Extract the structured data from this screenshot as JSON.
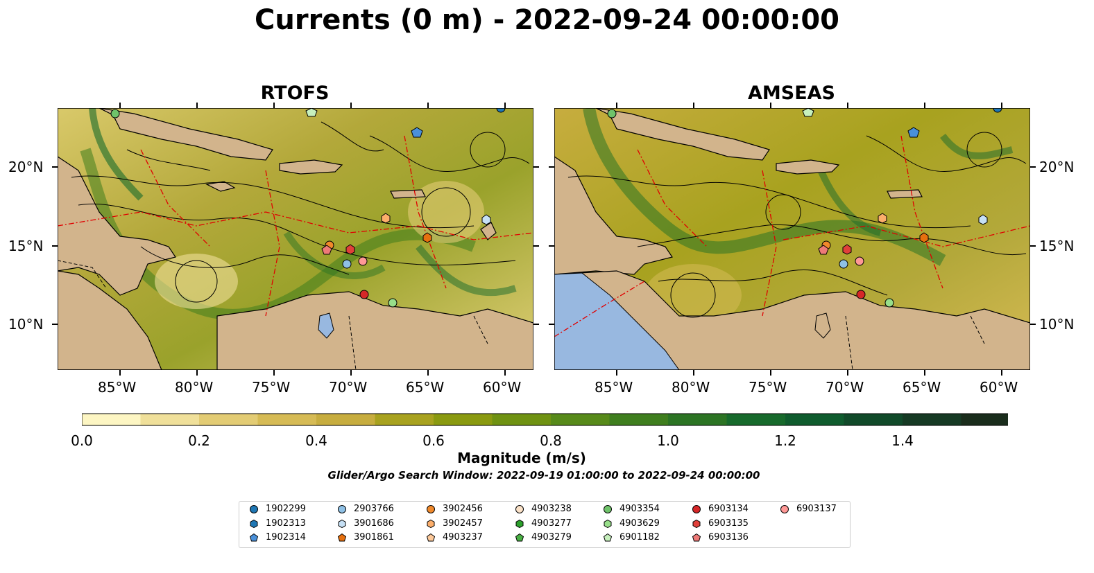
{
  "title": "Currents (0 m) - 2022-09-24 00:00:00",
  "panels": [
    {
      "title": "RTOFS"
    },
    {
      "title": "AMSEAS"
    }
  ],
  "axes": {
    "lon_ticks": [
      "85°W",
      "80°W",
      "75°W",
      "70°W",
      "65°W",
      "60°W"
    ],
    "lat_ticks": [
      "20°N",
      "15°N",
      "10°N"
    ]
  },
  "colorbar": {
    "label": "Magnitude (m/s)",
    "ticks": [
      "0.0",
      "0.2",
      "0.4",
      "0.6",
      "0.8",
      "1.0",
      "1.2",
      "1.4"
    ],
    "colors": [
      "#fdf6c3",
      "#f0e09a",
      "#e3cc74",
      "#d6bb55",
      "#c7ad3f",
      "#a8a21f",
      "#8a9a10",
      "#6f9212",
      "#578a1a",
      "#3f7e1e",
      "#2c7424",
      "#176a2c",
      "#0f5c2e",
      "#114a2a",
      "#163a24",
      "#1a2d1c"
    ]
  },
  "search_window": "Glider/Argo Search Window: 2022-09-19 01:00:00 to 2022-09-24 00:00:00",
  "legend": [
    {
      "id": "1902299",
      "marker": "circle",
      "color": "#1f77b4"
    },
    {
      "id": "1902313",
      "marker": "hexagon",
      "color": "#1f77b4"
    },
    {
      "id": "1902314",
      "marker": "pentagon",
      "color": "#4a90d9"
    },
    {
      "id": "2903766",
      "marker": "circle",
      "color": "#8fc1e6"
    },
    {
      "id": "3901686",
      "marker": "hexagon",
      "color": "#c6e0f5"
    },
    {
      "id": "3901861",
      "marker": "pentagon",
      "color": "#e6700e"
    },
    {
      "id": "3902456",
      "marker": "circle",
      "color": "#f0892b"
    },
    {
      "id": "3902457",
      "marker": "hexagon",
      "color": "#fcae6b"
    },
    {
      "id": "4903237",
      "marker": "pentagon",
      "color": "#fdc99a"
    },
    {
      "id": "4903238",
      "marker": "circle",
      "color": "#fbe2c8"
    },
    {
      "id": "4903277",
      "marker": "hexagon",
      "color": "#2ca02c"
    },
    {
      "id": "4903279",
      "marker": "pentagon",
      "color": "#49b044"
    },
    {
      "id": "4903354",
      "marker": "circle",
      "color": "#6fc36a"
    },
    {
      "id": "4903629",
      "marker": "hexagon",
      "color": "#98df8a"
    },
    {
      "id": "6901182",
      "marker": "pentagon",
      "color": "#c7f0bd"
    },
    {
      "id": "6903134",
      "marker": "circle",
      "color": "#d62728"
    },
    {
      "id": "6903135",
      "marker": "hexagon",
      "color": "#e0403a"
    },
    {
      "id": "6903136",
      "marker": "pentagon",
      "color": "#ee7a78"
    },
    {
      "id": "6903137",
      "marker": "circle",
      "color": "#ff9896"
    }
  ]
}
